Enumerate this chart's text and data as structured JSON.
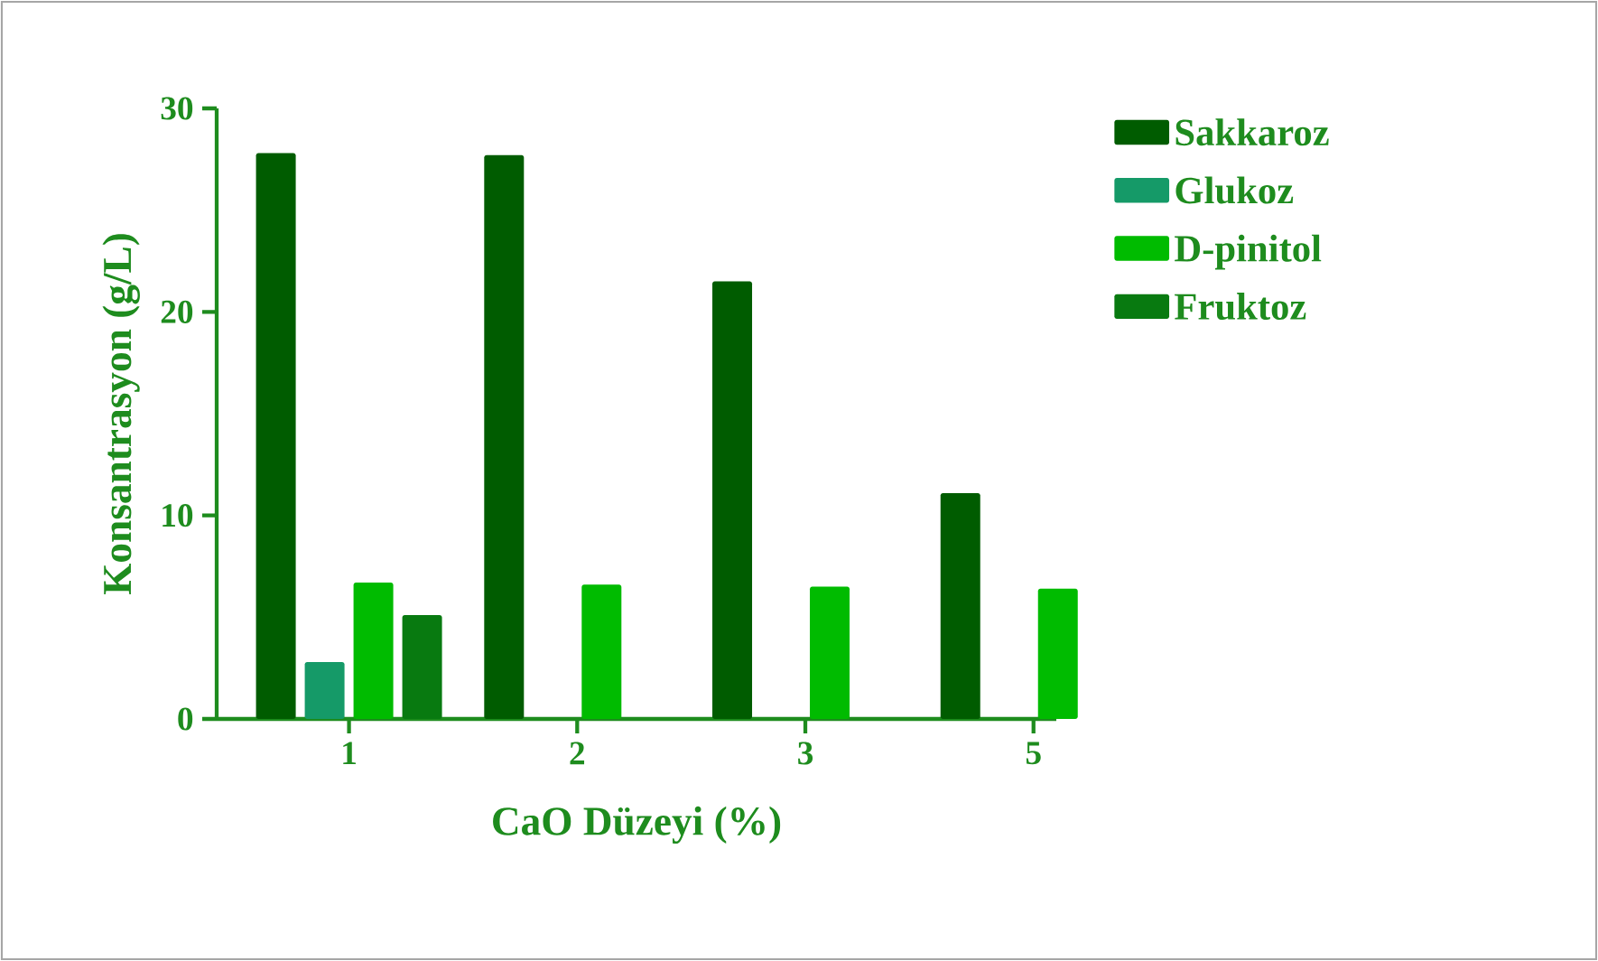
{
  "chart_data": {
    "type": "bar",
    "xlabel": "CaO Düzeyi (%)",
    "ylabel": "Konsantrasyon (g/L)",
    "categories": [
      "1",
      "2",
      "3",
      "5"
    ],
    "series": [
      {
        "name": "Sakkaroz",
        "color": "#005c00",
        "values": [
          27.8,
          27.7,
          21.5,
          11.1
        ]
      },
      {
        "name": "Glukoz",
        "color": "#159a68",
        "values": [
          2.8,
          null,
          null,
          null
        ]
      },
      {
        "name": "D-pinitol",
        "color": "#00bb00",
        "values": [
          6.7,
          6.6,
          6.5,
          6.4
        ]
      },
      {
        "name": "Fruktoz",
        "color": "#087a10",
        "values": [
          5.1,
          null,
          null,
          null
        ]
      }
    ],
    "ylim": [
      0,
      30
    ],
    "yticks": [
      0,
      10,
      20,
      30
    ],
    "legend": "right"
  }
}
